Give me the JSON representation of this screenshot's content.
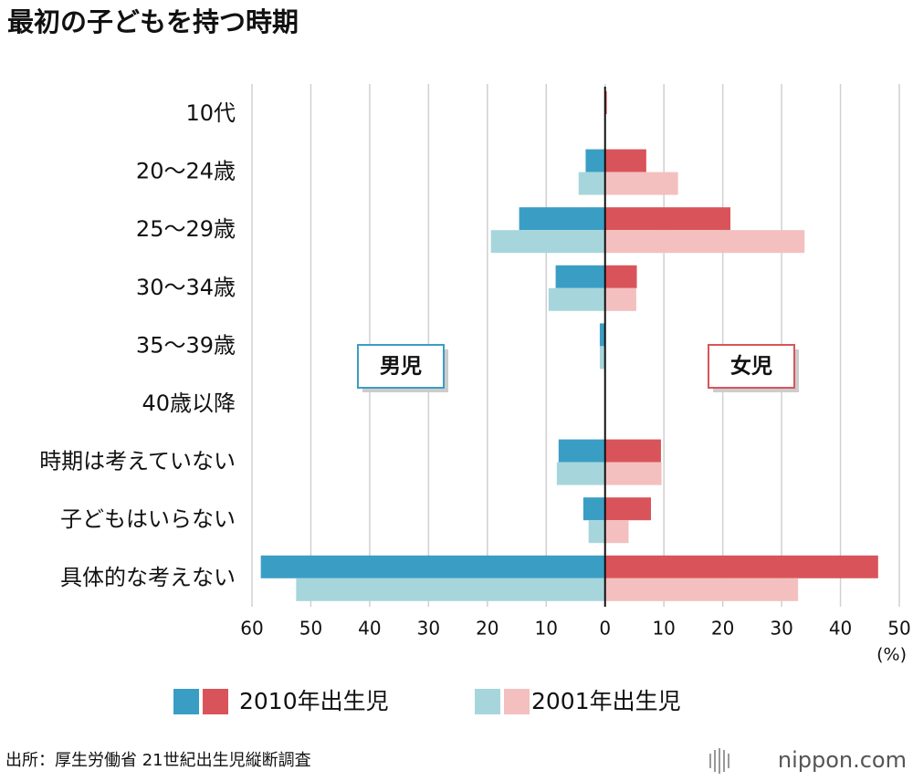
{
  "chart_data": {
    "type": "bar",
    "orientation": "horizontal",
    "title": "最初の子どもを持つ時期",
    "categories": [
      "10代",
      "20〜24歳",
      "25〜29歳",
      "30〜34歳",
      "35〜39歳",
      "40歳以降",
      "時期は考えていない",
      "子どもはいらない",
      "具体的な考えない"
    ],
    "series": [
      {
        "name": "2010年出生児",
        "colors": [
          "#3a9ec4",
          "#d9545a"
        ],
        "male": [
          0,
          -3.3,
          -14.6,
          -8.4,
          -0.9,
          0,
          -7.9,
          -3.7,
          -58.5
        ],
        "female": [
          0.3,
          7.0,
          21.3,
          5.4,
          0,
          0,
          9.5,
          7.8,
          46.4
        ]
      },
      {
        "name": "2001年出生児",
        "colors": [
          "#a6d6dc",
          "#f3c0bf"
        ],
        "male": [
          0,
          -4.5,
          -19.4,
          -9.6,
          -0.9,
          0,
          -8.2,
          -2.8,
          -52.5
        ],
        "female": [
          0.1,
          12.4,
          33.9,
          5.3,
          0,
          0,
          9.6,
          4.0,
          32.8
        ]
      }
    ],
    "left_label": "男児",
    "right_label": "女児",
    "xlabel": "(%)",
    "xlim": [
      -60,
      50
    ],
    "xticks": [
      {
        "value": -60,
        "label": "60"
      },
      {
        "value": -50,
        "label": "50"
      },
      {
        "value": -40,
        "label": "40"
      },
      {
        "value": -30,
        "label": "30"
      },
      {
        "value": -20,
        "label": "20"
      },
      {
        "value": -10,
        "label": "10"
      },
      0,
      10,
      20,
      30,
      40,
      50
    ],
    "grid": true,
    "source": "出所：厚生労働省 21世紀出生児縦断調査",
    "brand": "nippon.com"
  }
}
